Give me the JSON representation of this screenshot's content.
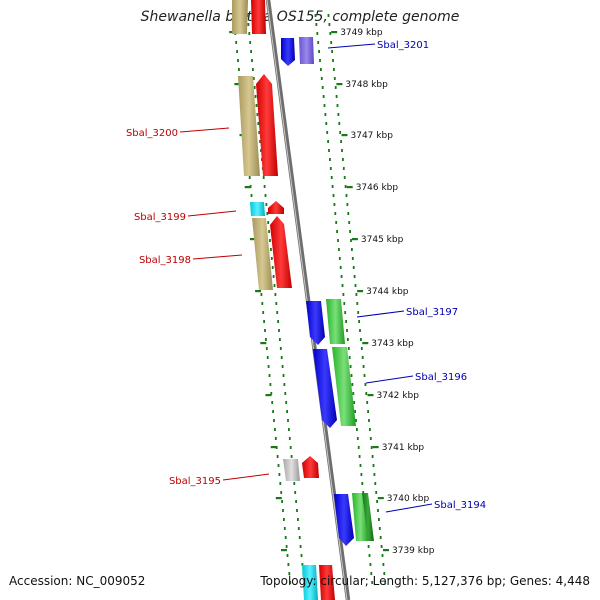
{
  "title": "Shewanella baltica OS155, complete genome",
  "footer": {
    "accession": "Accession: NC_009052",
    "summary": "Topology: circular; Length: 5,127,376 bp; Genes: 4,448"
  },
  "colors": {
    "backbone": "#8a8a8a",
    "label_forward": "#0000b0",
    "label_reverse": "#c00000",
    "tick": "#1a7a1a"
  },
  "ruler": [
    {
      "label": "3749 kbp"
    },
    {
      "label": "3748 kbp"
    },
    {
      "label": "3747 kbp"
    },
    {
      "label": "3746 kbp"
    },
    {
      "label": "3745 kbp"
    },
    {
      "label": "3744 kbp"
    },
    {
      "label": "3743 kbp"
    },
    {
      "label": "3742 kbp"
    },
    {
      "label": "3741 kbp"
    },
    {
      "label": "3740 kbp"
    },
    {
      "label": "3739 kbp"
    }
  ],
  "gene_labels": [
    {
      "name": "Sbal_3201",
      "strand": "forward"
    },
    {
      "name": "Sbal_3200",
      "strand": "reverse"
    },
    {
      "name": "Sbal_3199",
      "strand": "reverse"
    },
    {
      "name": "Sbal_3198",
      "strand": "reverse"
    },
    {
      "name": "Sbal_3197",
      "strand": "forward"
    },
    {
      "name": "Sbal_3196",
      "strand": "forward"
    },
    {
      "name": "Sbal_3195",
      "strand": "reverse"
    },
    {
      "name": "Sbal_3194",
      "strand": "forward"
    }
  ]
}
